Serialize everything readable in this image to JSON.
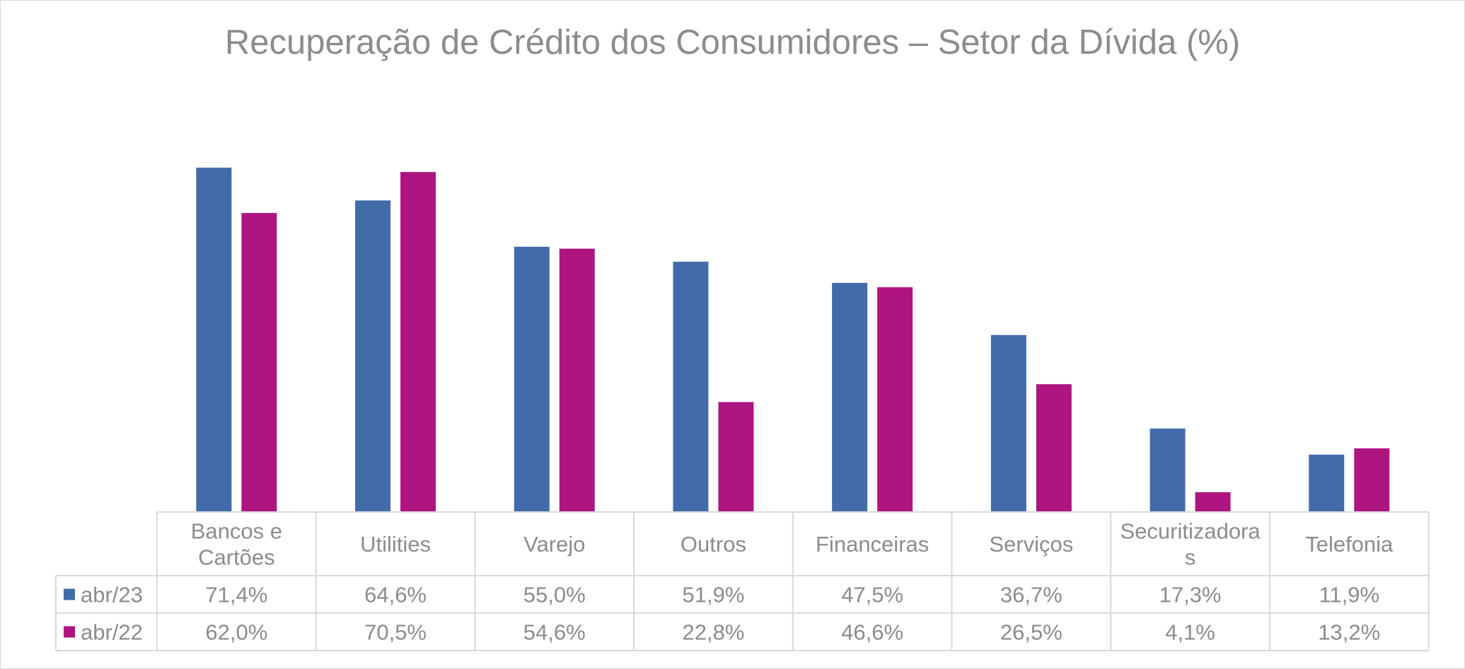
{
  "chart_data": {
    "type": "bar",
    "title": "Recuperação de Crédito dos Consumidores – Setor da Dívida (%)",
    "categories": [
      [
        "Bancos e",
        "Cartões"
      ],
      [
        "Utilities"
      ],
      [
        "Varejo"
      ],
      [
        "Outros"
      ],
      [
        "Financeiras"
      ],
      [
        "Serviços"
      ],
      [
        "Securitizadora",
        "s"
      ],
      [
        "Telefonia"
      ]
    ],
    "series": [
      {
        "name": "abr/23",
        "color": "#416ca9",
        "values": [
          71.4,
          64.6,
          55.0,
          51.9,
          47.5,
          36.7,
          17.3,
          11.9
        ],
        "labels": [
          "71,4%",
          "64,6%",
          "55,0%",
          "51,9%",
          "47,5%",
          "36,7%",
          "17,3%",
          "11,9%"
        ]
      },
      {
        "name": "abr/22",
        "color": "#ae1580",
        "values": [
          62.0,
          70.5,
          54.6,
          22.8,
          46.6,
          26.5,
          4.1,
          13.2
        ],
        "labels": [
          "62,0%",
          "70,5%",
          "54,6%",
          "22,8%",
          "46,6%",
          "26,5%",
          "4,1%",
          "13,2%"
        ]
      }
    ],
    "ylim": [
      0,
      80
    ],
    "grid": false,
    "legend": "data-table"
  }
}
